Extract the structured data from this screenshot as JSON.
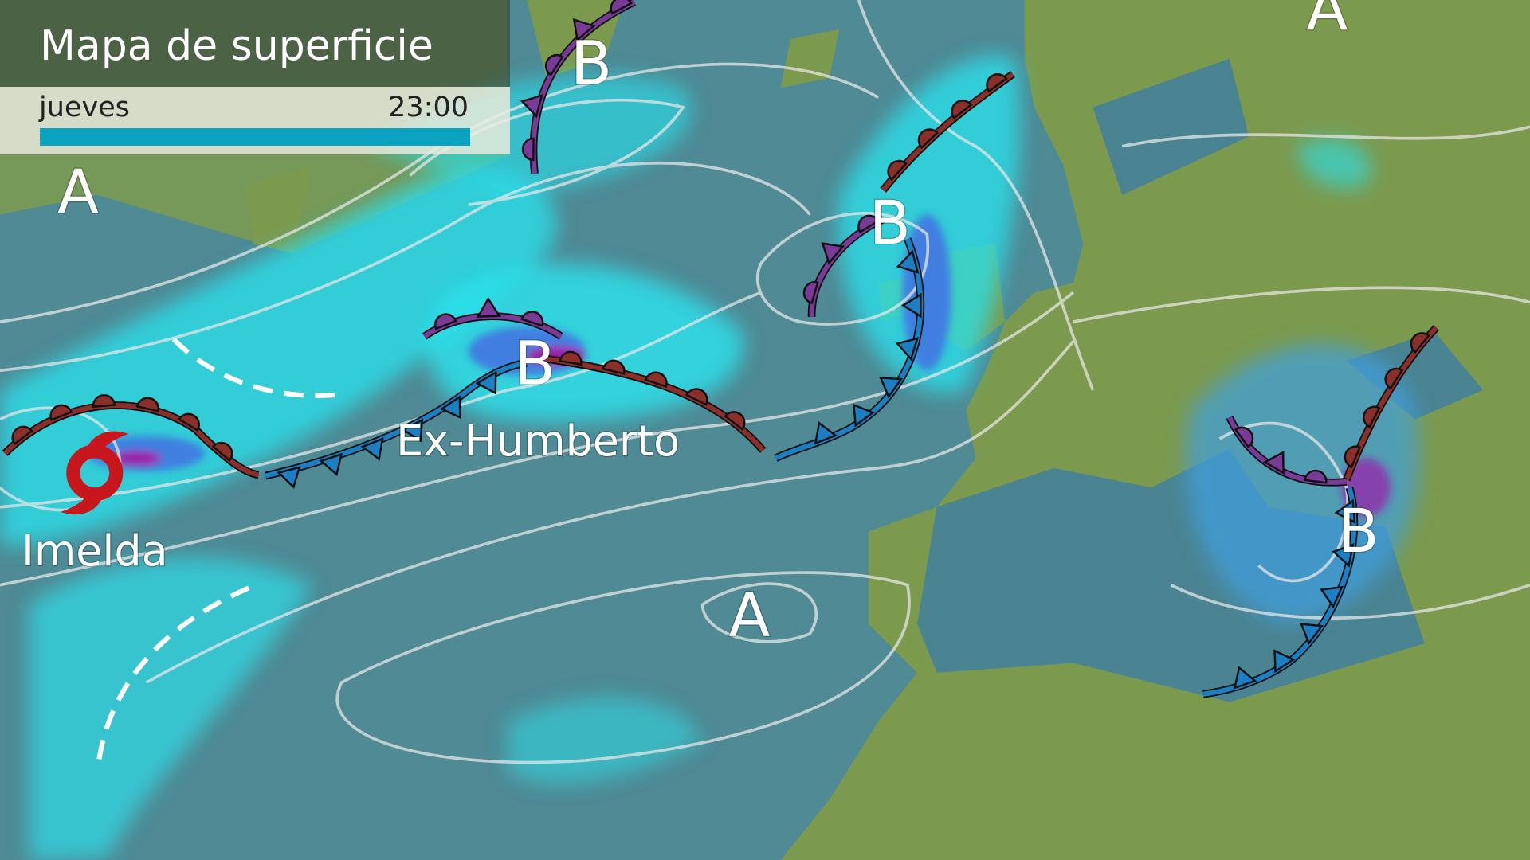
{
  "header": {
    "title": "Mapa de superficie",
    "day": "jueves",
    "time": "23:00",
    "progress": 1.0
  },
  "colors": {
    "ocean": "#4f8a95",
    "land": "#7c9a4e",
    "precip_light": "#29e3ee",
    "precip_mid": "#3f7fe0",
    "precip_heavy": "#9b1fa8",
    "warm_front": "#8b2f2b",
    "cold_front": "#1c7fc4",
    "occluded_front": "#7a3b97",
    "tropical_cyclone": "#c8161d"
  },
  "pressure_centers": [
    {
      "type": "A",
      "label": "A"
    },
    {
      "type": "A",
      "label": "A"
    },
    {
      "type": "A",
      "label": "A"
    },
    {
      "type": "B",
      "label": "B"
    },
    {
      "type": "B",
      "label": "B"
    },
    {
      "type": "B",
      "label": "B"
    },
    {
      "type": "B",
      "label": "B"
    }
  ],
  "systems": {
    "ex_humberto": "Ex-Humberto",
    "imelda": "Imelda"
  },
  "icons": {
    "cyclone": "hurricane-icon"
  }
}
